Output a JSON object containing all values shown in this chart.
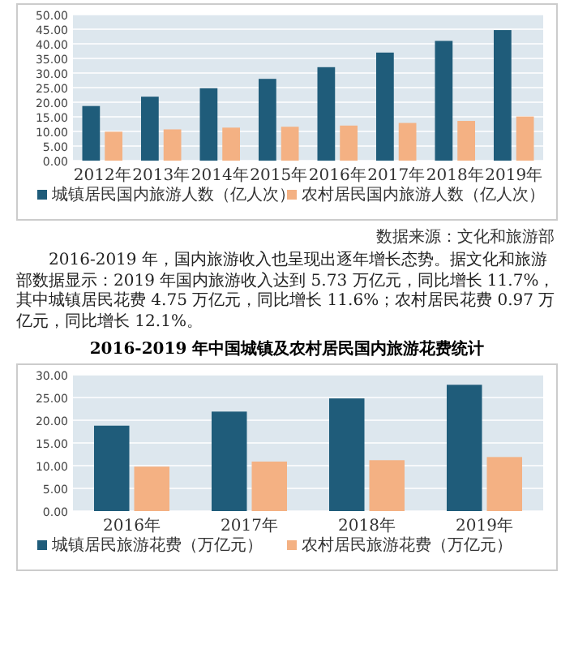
{
  "chart_data": [
    {
      "type": "bar",
      "categories": [
        "2012年",
        "2013年",
        "2014年",
        "2015年",
        "2016年",
        "2017年",
        "2018年",
        "2019年"
      ],
      "series": [
        {
          "name": "城镇居民国内旅游人数（亿人次）",
          "color": "#1f5c7a",
          "values": [
            18.7,
            21.9,
            24.8,
            28.0,
            32.0,
            37.0,
            41.0,
            44.7
          ]
        },
        {
          "name": "农村居民国内旅游人数（亿人次）",
          "color": "#f4b183",
          "values": [
            9.9,
            10.7,
            11.3,
            11.6,
            12.0,
            12.9,
            13.6,
            15.1
          ]
        }
      ],
      "ylim": [
        0,
        50
      ],
      "yticks": [
        {
          "value": 0,
          "label": "0.00"
        },
        {
          "value": 5,
          "label": "5.00"
        },
        {
          "value": 10,
          "label": "10.00"
        },
        {
          "value": 15,
          "label": "15.00"
        },
        {
          "value": 20,
          "label": "20.00"
        },
        {
          "value": 25,
          "label": "25.00"
        },
        {
          "value": 30,
          "label": "30.00"
        },
        {
          "value": 35,
          "label": "35.00"
        },
        {
          "value": 40,
          "label": "40.00"
        },
        {
          "value": 45,
          "label": "45.00"
        },
        {
          "value": 50,
          "label": "50.00"
        }
      ],
      "grid": "y",
      "legend": "bottom",
      "annotations": [
        "数据来源：文化和旅游部",
        "2016-2019 年，国内旅游收入也呈现出逐年增长态势。据文化和旅游部数据显示：2019 年国内旅游收入达到 5.73 万亿元，同比增长 11.7%，其中城镇居民花费 4.75 万亿元，同比增长 11.6%；农村居民花费 0.97 万亿元，同比增长 12.1%。"
      ]
    },
    {
      "type": "bar",
      "title": "2016-2019 年中国城镇及农村居民国内旅游花费统计",
      "categories": [
        "2016年",
        "2017年",
        "2018年",
        "2019年"
      ],
      "series": [
        {
          "name": "城镇居民旅游花费（万亿元）",
          "color": "#1f5c7a",
          "values": [
            18.8,
            21.9,
            24.8,
            27.8
          ]
        },
        {
          "name": "农村居民旅游花费（万亿元）",
          "color": "#f4b183",
          "values": [
            9.8,
            10.9,
            11.2,
            11.9
          ]
        }
      ],
      "ylim": [
        0,
        30
      ],
      "yticks": [
        {
          "value": 0,
          "label": "0.00"
        },
        {
          "value": 5,
          "label": "5.00"
        },
        {
          "value": 10,
          "label": "10.00"
        },
        {
          "value": 15,
          "label": "15.00"
        },
        {
          "value": 20,
          "label": "20.00"
        },
        {
          "value": 25,
          "label": "25.00"
        },
        {
          "value": 30,
          "label": "30.00"
        }
      ],
      "grid": "y",
      "legend": "bottom"
    }
  ]
}
